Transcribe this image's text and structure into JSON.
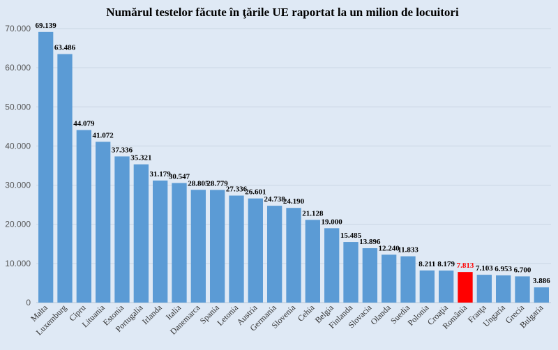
{
  "chart_data": {
    "type": "bar",
    "title": "Numărul testelor făcute în ţările UE raportat la un milion de locuitori",
    "xlabel": "",
    "ylabel": "",
    "ylim": [
      0,
      70000
    ],
    "yticks": [
      0,
      10000,
      20000,
      30000,
      40000,
      50000,
      60000,
      70000
    ],
    "ytick_labels": [
      "0",
      "10.000",
      "20.000",
      "30.000",
      "40.000",
      "50.000",
      "60.000",
      "70.000"
    ],
    "grid": true,
    "legend": "none",
    "colors": {
      "default": "#5b9bd5",
      "highlight": "#ff0000",
      "background": "#dfe9f5",
      "grid": "#c9d6e4"
    },
    "highlight_category": "România",
    "categories": [
      "Malta",
      "Luxemburg",
      "Cipru",
      "Lituania",
      "Estonia",
      "Portugalia",
      "Irlanda",
      "Italia",
      "Danemarca",
      "Spania",
      "Letonia",
      "Austria",
      "Germania",
      "Slovenia",
      "Cehia",
      "Belgia",
      "Finlanda",
      "Slovacia",
      "Olanda",
      "Suedia",
      "Polonia",
      "Croaţia",
      "România",
      "Franţa",
      "Ungaria",
      "Grecia",
      "Bulgaria"
    ],
    "values": [
      69139,
      63486,
      44079,
      41072,
      37336,
      35321,
      31179,
      30547,
      28805,
      28779,
      27336,
      26601,
      24738,
      24190,
      21128,
      19000,
      15485,
      13896,
      12240,
      11833,
      8211,
      8179,
      7813,
      7103,
      6953,
      6700,
      3886
    ],
    "value_labels": [
      "69.139",
      "63.486",
      "44.079",
      "41.072",
      "37.336",
      "35.321",
      "31.179",
      "30.547",
      "28.805",
      "28.779",
      "27.336",
      "26.601",
      "24.738",
      "24.190",
      "21.128",
      "19.000",
      "15.485",
      "13.896",
      "12.240",
      "11.833",
      "8.211",
      "8.179",
      "7.813",
      "7.103",
      "6.953",
      "6.700",
      "3.886"
    ]
  }
}
